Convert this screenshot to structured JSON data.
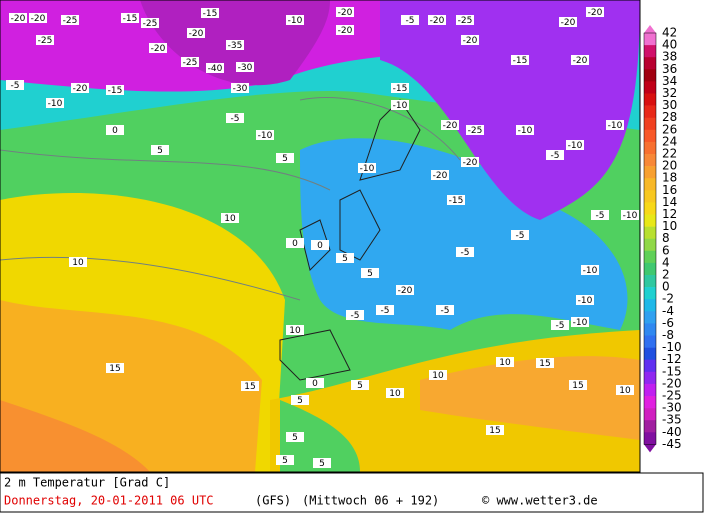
{
  "map": {
    "labels": [
      "-20",
      "-20",
      "-25",
      "-25",
      "-15",
      "-25",
      "-20",
      "-20",
      "-15",
      "-35",
      "-25",
      "-40",
      "-30",
      "-30",
      "-10",
      "-20",
      "-20",
      "-5",
      "-20",
      "-25",
      "-20",
      "-15",
      "-20",
      "-20",
      "-20",
      "-5",
      "-10",
      "-20",
      "-15",
      "-10",
      "-5",
      "-15",
      "-10",
      "-20",
      "-25",
      "-10",
      "-10",
      "-5",
      "-10",
      "-20",
      "-20",
      "-10",
      "-15",
      "-5",
      "-5",
      "-10",
      "-5",
      "-20",
      "-5",
      "-5",
      "-5",
      "-10",
      "-10",
      "-5",
      "-10",
      "10",
      "10",
      "10",
      "15",
      "15",
      "0",
      "5",
      "5",
      "10",
      "10",
      "10",
      "15",
      "15",
      "10",
      "15",
      "5",
      "5",
      "5",
      "5",
      "5",
      "0",
      "0",
      "5",
      "5",
      "0"
    ]
  },
  "legend": {
    "levels": [
      42,
      40,
      38,
      36,
      34,
      32,
      30,
      28,
      26,
      24,
      22,
      20,
      18,
      16,
      14,
      12,
      10,
      8,
      6,
      4,
      2,
      0,
      -2,
      -4,
      -6,
      -8,
      -10,
      -12,
      -15,
      -20,
      -25,
      -30,
      -35,
      -40,
      -45
    ],
    "colors": [
      "#f070d0",
      "#d0106a",
      "#b80030",
      "#a00010",
      "#c00018",
      "#d81010",
      "#e82818",
      "#f04020",
      "#f85828",
      "#f87030",
      "#f88838",
      "#f8a030",
      "#f8b828",
      "#f8c820",
      "#f8d818",
      "#e8e818",
      "#b8e030",
      "#90d848",
      "#60d058",
      "#40c870",
      "#30c8a0",
      "#20d0d0",
      "#20b8e8",
      "#30a0f0",
      "#3088f0",
      "#3070f0",
      "#2050e0",
      "#6030f0",
      "#9028f0",
      "#c020f0",
      "#e020e0",
      "#d020c0",
      "#a020a0",
      "#8010a0"
    ]
  },
  "footer": {
    "variable": "2 m Temperatur [Grad C]",
    "date": "Donnerstag, 20-01-2011  06 UTC",
    "model": "(GFS)",
    "run": "(Mittwoch 06 + 192)",
    "source": "© www.wetter3.de"
  }
}
